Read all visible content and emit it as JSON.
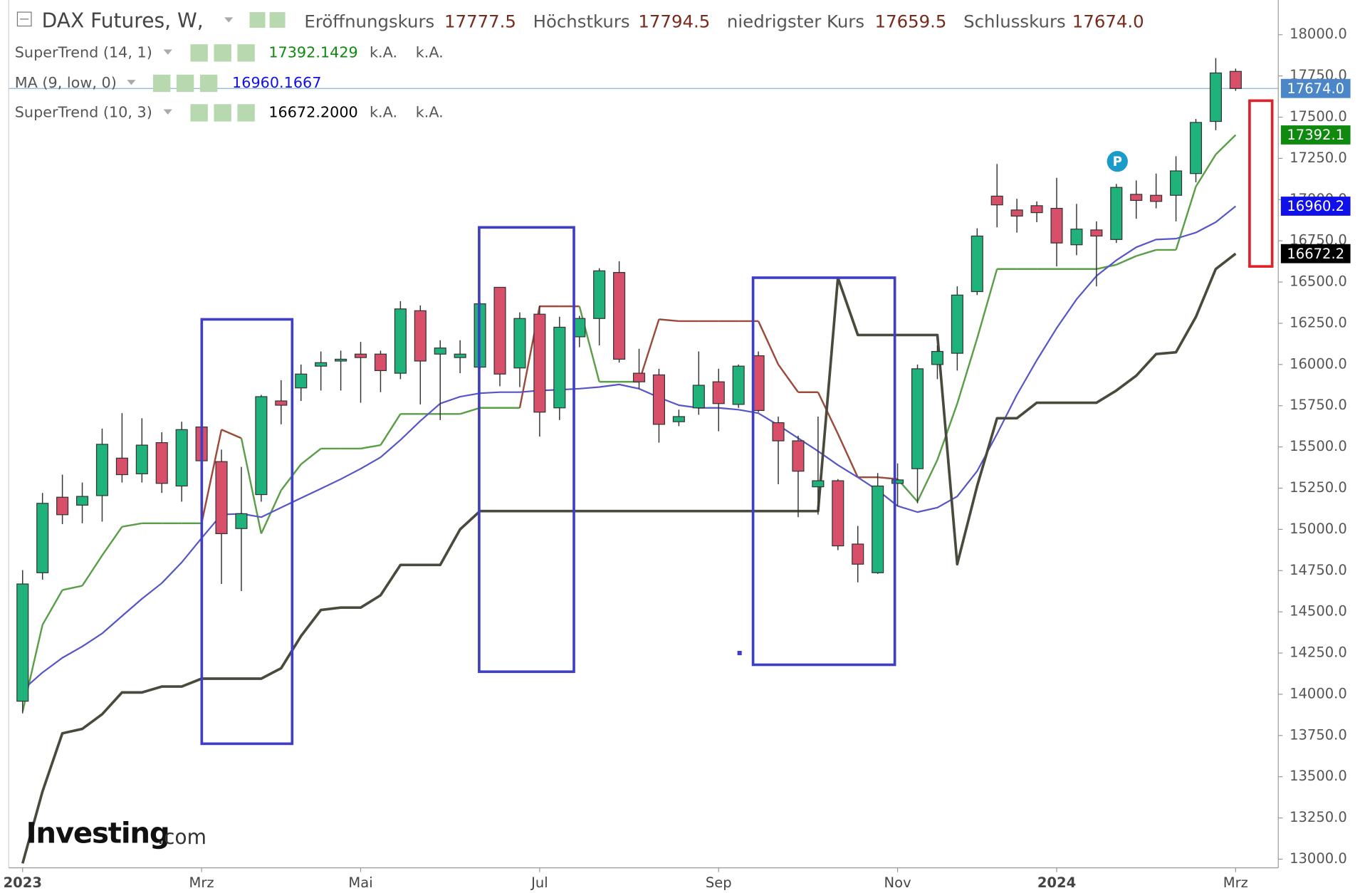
{
  "chart_data": {
    "type": "candlestick",
    "header": {
      "title": "DAX Futures, W,",
      "fields": [
        {
          "label": "Eröffnungskurs",
          "value": "17777.5"
        },
        {
          "label": "Höchstkurs",
          "value": "17794.5"
        },
        {
          "label": "niedrigster Kurs",
          "value": "17659.5"
        },
        {
          "label": "Schlusskurs",
          "value": "17674.0"
        }
      ]
    },
    "categories": [
      "2023",
      null,
      null,
      null,
      null,
      null,
      null,
      null,
      null,
      "Mrz",
      null,
      null,
      null,
      null,
      null,
      null,
      null,
      "Mai",
      null,
      null,
      null,
      null,
      null,
      null,
      null,
      null,
      "Jul",
      null,
      null,
      null,
      null,
      null,
      null,
      null,
      null,
      "Sep",
      null,
      null,
      null,
      null,
      null,
      null,
      null,
      null,
      "Nov",
      null,
      null,
      null,
      null,
      null,
      null,
      null,
      "2024",
      null,
      null,
      null,
      null,
      null,
      null,
      null,
      null,
      "Mrz"
    ],
    "open": [
      13958,
      14737,
      15195,
      15147,
      15205,
      15432,
      15337,
      15526,
      15263,
      15621,
      15411,
      15005,
      15211,
      15779,
      15858,
      15990,
      16021,
      16063,
      16063,
      15947,
      16326,
      16063,
      16042,
      15984,
      16468,
      15979,
      16305,
      15737,
      16168,
      16279,
      16558,
      15947,
      15937,
      15653,
      15737,
      15895,
      15758,
      16053,
      15647,
      15537,
      15258,
      15295,
      14911,
      14737,
      15279,
      15368,
      16000,
      16068,
      16442,
      17021,
      16937,
      16963,
      16947,
      16726,
      16816,
      16758,
      17032,
      17026,
      17026,
      17158,
      17474,
      17777.5
    ],
    "high": [
      14753,
      15221,
      15332,
      15284,
      15611,
      15705,
      15674,
      15589,
      15653,
      15632,
      15484,
      15379,
      15816,
      15905,
      16000,
      16079,
      16084,
      16137,
      16084,
      16384,
      16358,
      16147,
      16147,
      16379,
      16468,
      16316,
      16358,
      16289,
      16295,
      16584,
      16626,
      16095,
      15974,
      15726,
      16079,
      15974,
      16000,
      16079,
      15684,
      15568,
      15684,
      15305,
      15021,
      15342,
      15400,
      16000,
      16116,
      16474,
      16826,
      17216,
      17005,
      16989,
      17132,
      16974,
      16868,
      17095,
      17116,
      17158,
      17263,
      17489,
      17858,
      17794.5
    ],
    "low": [
      13884,
      14695,
      15032,
      15037,
      15047,
      15284,
      15284,
      15221,
      15168,
      15390,
      14669,
      14626,
      15168,
      15637,
      15779,
      15842,
      15842,
      15768,
      15832,
      15911,
      15758,
      15663,
      15947,
      15974,
      15868,
      15863,
      15563,
      15663,
      16105,
      16116,
      16011,
      15853,
      15526,
      15626,
      15695,
      15595,
      15737,
      15711,
      15274,
      15074,
      15089,
      14874,
      14679,
      14730,
      15142,
      15158,
      15911,
      15963,
      16421,
      16832,
      16800,
      16863,
      16595,
      16663,
      16474,
      16737,
      16884,
      16947,
      16868,
      17105,
      17421,
      17659.5
    ],
    "close": [
      14669,
      15158,
      15089,
      15200,
      15516,
      15332,
      15511,
      15279,
      15605,
      15416,
      14974,
      15095,
      15805,
      15753,
      15942,
      16011,
      16032,
      16042,
      15963,
      16337,
      16021,
      16100,
      16063,
      16368,
      15942,
      16279,
      15711,
      16226,
      16279,
      16568,
      16032,
      15895,
      15637,
      15684,
      15874,
      15763,
      15990,
      15721,
      15537,
      15353,
      15295,
      14900,
      14789,
      15263,
      15300,
      15974,
      16079,
      16421,
      16779,
      16968,
      16900,
      16921,
      16737,
      16821,
      16779,
      17074,
      16995,
      16989,
      17174,
      17468,
      17768,
      17674
    ],
    "up_color": "#1fb27b",
    "down_color": "#d84f6a",
    "close_label": "17674.0",
    "close_tag_color": "#4a86c8",
    "series": [
      {
        "name": "SuperTrend (14, 1)",
        "color": "#5a9e48",
        "tag_color": "#0f8a0f",
        "legend_values": [
          "17392.1429",
          "k.A.",
          "k.A."
        ],
        "last_label": "17392.1",
        "values": [
          13895,
          14421,
          14632,
          14658,
          14842,
          15016,
          15037,
          15037,
          15037,
          15037,
          15605,
          15553,
          14974,
          15237,
          15395,
          15490,
          15490,
          15490,
          15511,
          15700,
          15700,
          15700,
          15700,
          15737,
          15737,
          15737,
          16353,
          16353,
          16353,
          15895,
          15895,
          15895,
          16274,
          16263,
          16263,
          16263,
          16263,
          16263,
          16000,
          15832,
          15832,
          15579,
          15316,
          15316,
          15305,
          15169,
          15421,
          15763,
          16158,
          16579,
          16579,
          16579,
          16579,
          16579,
          16579,
          16605,
          16658,
          16695,
          16695,
          17079,
          17274,
          17392.1429
        ],
        "colors": [
          "#5a9e48",
          "#5a9e48",
          "#5a9e48",
          "#5a9e48",
          "#5a9e48",
          "#5a9e48",
          "#5a9e48",
          "#5a9e48",
          "#5a9e48",
          "#5a9e48",
          "#9c4a3c",
          "#9c4a3c",
          "#5a9e48",
          "#5a9e48",
          "#5a9e48",
          "#5a9e48",
          "#5a9e48",
          "#5a9e48",
          "#5a9e48",
          "#5a9e48",
          "#5a9e48",
          "#5a9e48",
          "#5a9e48",
          "#5a9e48",
          "#5a9e48",
          "#5a9e48",
          "#9c4a3c",
          "#9c4a3c",
          "#9c4a3c",
          "#5a9e48",
          "#5a9e48",
          "#5a9e48",
          "#9c4a3c",
          "#9c4a3c",
          "#9c4a3c",
          "#9c4a3c",
          "#9c4a3c",
          "#9c4a3c",
          "#9c4a3c",
          "#9c4a3c",
          "#9c4a3c",
          "#9c4a3c",
          "#9c4a3c",
          "#9c4a3c",
          "#9c4a3c",
          "#5a9e48",
          "#5a9e48",
          "#5a9e48",
          "#5a9e48",
          "#5a9e48",
          "#5a9e48",
          "#5a9e48",
          "#5a9e48",
          "#5a9e48",
          "#5a9e48",
          "#5a9e48",
          "#5a9e48",
          "#5a9e48",
          "#5a9e48",
          "#5a9e48",
          "#5a9e48",
          "#5a9e48"
        ]
      },
      {
        "name": "MA (9, low, 0)",
        "color": "#5555c8",
        "tag_color": "#1010e8",
        "legend_values": [
          "16960.1667"
        ],
        "last_label": "16960.2",
        "values": [
          14026,
          14132,
          14221,
          14290,
          14369,
          14474,
          14579,
          14674,
          14800,
          14947,
          15090,
          15095,
          15074,
          15132,
          15190,
          15247,
          15305,
          15368,
          15437,
          15542,
          15658,
          15763,
          15805,
          15826,
          15832,
          15832,
          15842,
          15847,
          15853,
          15863,
          15879,
          15853,
          15800,
          15753,
          15737,
          15737,
          15726,
          15705,
          15632,
          15553,
          15474,
          15390,
          15316,
          15237,
          15142,
          15105,
          15132,
          15200,
          15353,
          15579,
          15816,
          16026,
          16221,
          16395,
          16537,
          16632,
          16711,
          16758,
          16763,
          16800,
          16863,
          16960.1667
        ]
      },
      {
        "name": "SuperTrend (10, 3)",
        "color": "#4a4a3c",
        "tag_color": "#000000",
        "legend_values": [
          "16672.2000",
          "k.A.",
          "k.A."
        ],
        "last_label": "16672.2",
        "values": [
          12974,
          13411,
          13763,
          13790,
          13879,
          14011,
          14011,
          14047,
          14047,
          14095,
          14095,
          14095,
          14095,
          14158,
          14353,
          14511,
          14526,
          14526,
          14600,
          14784,
          14784,
          14784,
          15000,
          15111,
          15111,
          15111,
          15111,
          15111,
          15111,
          15111,
          15111,
          15111,
          15111,
          15111,
          15111,
          15111,
          15111,
          15111,
          15111,
          15111,
          15111,
          16526,
          16179,
          16179,
          16179,
          16179,
          16179,
          14789,
          15263,
          15674,
          15674,
          15768,
          15768,
          15768,
          15768,
          15842,
          15932,
          16063,
          16074,
          16289,
          16579,
          16672.2
        ]
      }
    ],
    "ylim": [
      12947.4,
      18210.5
    ],
    "yticks": [
      {
        "value": 13000,
        "label": "13000.0"
      },
      {
        "value": 13250,
        "label": "13250.0"
      },
      {
        "value": 13500,
        "label": "13500.0"
      },
      {
        "value": 13750,
        "label": "13750.0"
      },
      {
        "value": 14000,
        "label": "14000.0"
      },
      {
        "value": 14250,
        "label": "14250.0"
      },
      {
        "value": 14500,
        "label": "14500.0"
      },
      {
        "value": 14750,
        "label": "14750.0"
      },
      {
        "value": 15000,
        "label": "15000.0"
      },
      {
        "value": 15250,
        "label": "15250.0"
      },
      {
        "value": 15500,
        "label": "15500.0"
      },
      {
        "value": 15750,
        "label": "15750.0"
      },
      {
        "value": 16000,
        "label": "16000.0"
      },
      {
        "value": 16250,
        "label": "16250.0"
      },
      {
        "value": 16500,
        "label": "16500.0"
      },
      {
        "value": 16750,
        "label": "16750.0"
      },
      {
        "value": 17000,
        "label": "17000.0"
      },
      {
        "value": 17250,
        "label": "17250.0"
      },
      {
        "value": 17500,
        "label": "17500.0"
      },
      {
        "value": 17750,
        "label": "17750.0"
      },
      {
        "value": 18000,
        "label": "18000.0"
      }
    ],
    "marker_label": "P",
    "watermark": [
      "Investing",
      ".com"
    ]
  }
}
